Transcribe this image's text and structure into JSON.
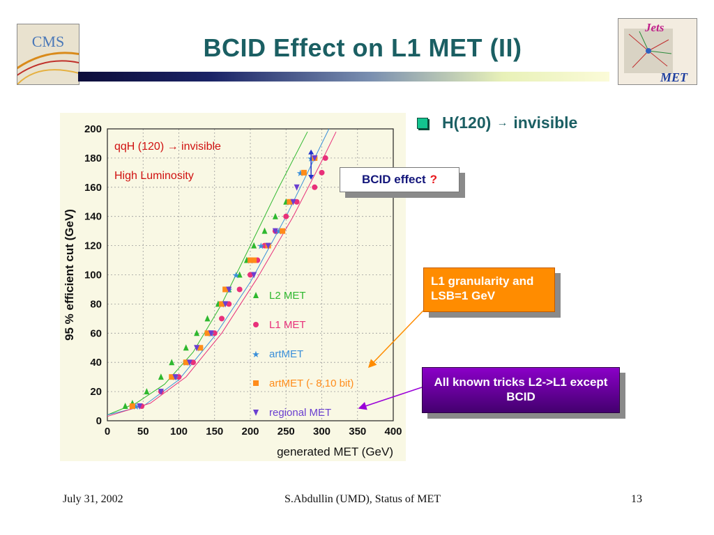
{
  "slide": {
    "title": "BCID Effect on L1 MET (II)",
    "logo_left": "CMS",
    "logo_right_top": "Jets",
    "logo_right_bottom": "MET"
  },
  "bullet": {
    "text_before": "H(120)",
    "arrow": "→",
    "text_after": "invisible",
    "color": "#13c48f"
  },
  "callouts": {
    "bcid_label": "BCID effect",
    "bcid_question": "?",
    "l1_granularity": "L1 granularity and LSB=1 GeV",
    "tricks": "All known tricks  L2->L1 except  BCID"
  },
  "footer": {
    "date": "July 31, 2002",
    "author": "S.Abdullin (UMD),  Status of MET",
    "page": "13"
  },
  "chart_data": {
    "type": "scatter",
    "annotation_1": "qqH (120) → invisible",
    "annotation_2": "High Luminosity",
    "xlabel": "generated MET  (GeV)",
    "ylabel": "95 % efficient cut  (GeV)",
    "xlim": [
      0,
      400
    ],
    "ylim": [
      0,
      200
    ],
    "xticks": [
      0,
      50,
      100,
      150,
      200,
      250,
      300,
      350,
      400
    ],
    "yticks": [
      0,
      20,
      40,
      60,
      80,
      100,
      120,
      140,
      160,
      180,
      200
    ],
    "grid": true,
    "legend_position": "lower-right",
    "series": [
      {
        "name": "L2 MET",
        "marker": "triangle-up",
        "color": "#2eb82e",
        "x": [
          25,
          35,
          55,
          75,
          90,
          110,
          125,
          140,
          155,
          170,
          185,
          195,
          205,
          220,
          235,
          250
        ],
        "y": [
          10,
          12,
          20,
          30,
          40,
          50,
          60,
          70,
          80,
          90,
          100,
          110,
          120,
          130,
          140,
          150
        ]
      },
      {
        "name": "L1 MET",
        "marker": "circle",
        "color": "#e8307a",
        "x": [
          48,
          75,
          100,
          120,
          150,
          160,
          170,
          185,
          200,
          210,
          220,
          235,
          250,
          265,
          290,
          300,
          305
        ],
        "y": [
          10,
          20,
          30,
          40,
          60,
          70,
          80,
          90,
          100,
          110,
          120,
          130,
          140,
          150,
          160,
          170,
          180
        ]
      },
      {
        "name": "artMET",
        "marker": "star",
        "color": "#3a8fd9",
        "x": [
          40,
          95,
          110,
          130,
          145,
          160,
          170,
          180,
          200,
          215,
          240,
          255,
          270,
          285
        ],
        "y": [
          10,
          30,
          40,
          50,
          60,
          80,
          90,
          100,
          110,
          120,
          130,
          150,
          170,
          180
        ]
      },
      {
        "name": "artMET (- 8,10 bit)",
        "marker": "square",
        "color": "#ff8c1a",
        "x": [
          35,
          90,
          110,
          130,
          140,
          160,
          165,
          200,
          205,
          225,
          245,
          255,
          275,
          290
        ],
        "y": [
          10,
          30,
          40,
          50,
          60,
          80,
          90,
          110,
          110,
          120,
          130,
          150,
          170,
          180
        ]
      },
      {
        "name": "regional MET",
        "marker": "triangle-down",
        "color": "#6a3fd0",
        "x": [
          45,
          75,
          95,
          115,
          125,
          145,
          165,
          170,
          205,
          225,
          235,
          260,
          265,
          290
        ],
        "y": [
          10,
          20,
          30,
          40,
          50,
          60,
          80,
          90,
          100,
          120,
          130,
          150,
          160,
          180
        ]
      }
    ],
    "fit_curves": [
      {
        "color": "#2eb82e",
        "points": [
          [
            0,
            4
          ],
          [
            40,
            12
          ],
          [
            80,
            25
          ],
          [
            120,
            47
          ],
          [
            160,
            80
          ],
          [
            200,
            120
          ],
          [
            240,
            160
          ],
          [
            280,
            198
          ]
        ]
      },
      {
        "color": "#3a8fd9",
        "points": [
          [
            0,
            4
          ],
          [
            50,
            10
          ],
          [
            100,
            28
          ],
          [
            150,
            58
          ],
          [
            200,
            95
          ],
          [
            250,
            140
          ],
          [
            290,
            180
          ],
          [
            310,
            200
          ]
        ]
      },
      {
        "color": "#e8307a",
        "points": [
          [
            0,
            3
          ],
          [
            60,
            12
          ],
          [
            110,
            30
          ],
          [
            160,
            60
          ],
          [
            210,
            98
          ],
          [
            260,
            140
          ],
          [
            300,
            178
          ],
          [
            320,
            198
          ]
        ]
      }
    ],
    "highlight_arrow": {
      "color": "#2233cc",
      "x": 285,
      "y_from": 168,
      "y_to": 183
    }
  }
}
